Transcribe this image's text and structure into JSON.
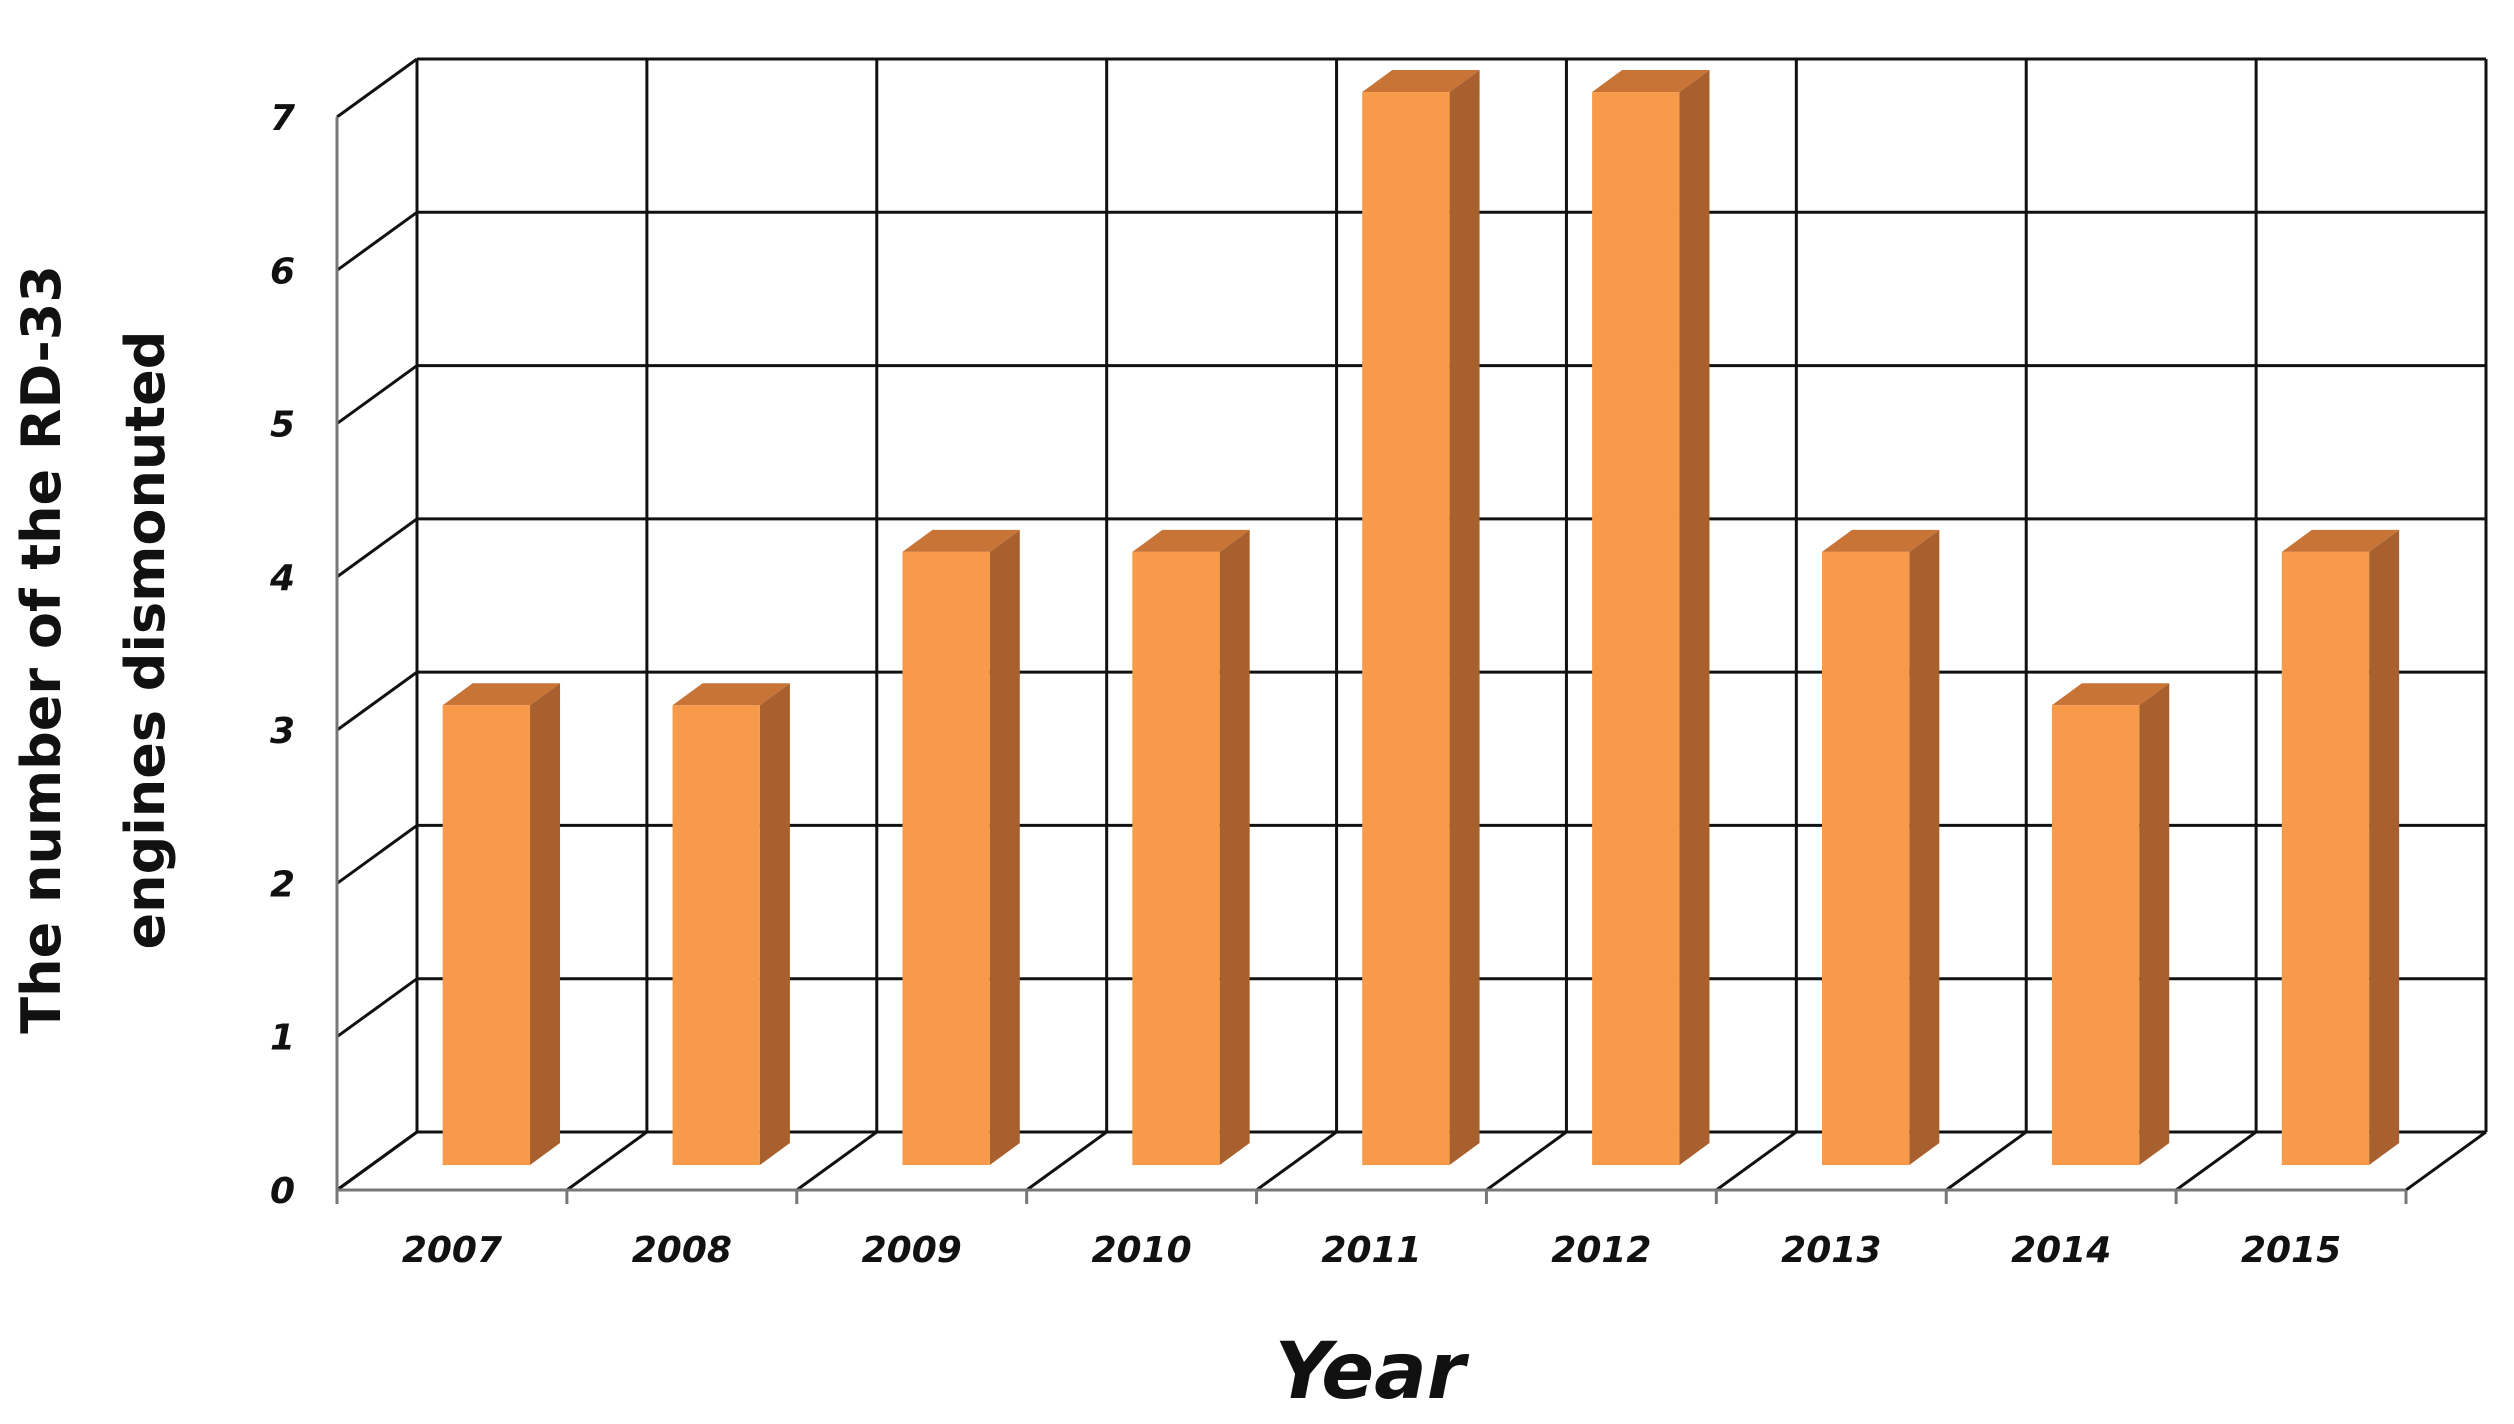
{
  "chart_data": {
    "type": "bar",
    "style": "3d-column",
    "categories": [
      "2007",
      "2008",
      "2009",
      "2010",
      "2011",
      "2012",
      "2013",
      "2014",
      "2015"
    ],
    "values": [
      3,
      3,
      4,
      4,
      7,
      7,
      4,
      3,
      4
    ],
    "xlabel": "Year",
    "ylabel_lines": [
      "The number of the RD-33",
      "engines dismonuted"
    ],
    "ylim": [
      0,
      7
    ],
    "yticks": [
      "0",
      "1",
      "2",
      "3",
      "4",
      "5",
      "6",
      "7"
    ],
    "grid": true,
    "legend": "none",
    "colors": {
      "bar_front": "#F79A4A",
      "bar_side": "#A8612E",
      "bar_top": "#C87437"
    }
  }
}
